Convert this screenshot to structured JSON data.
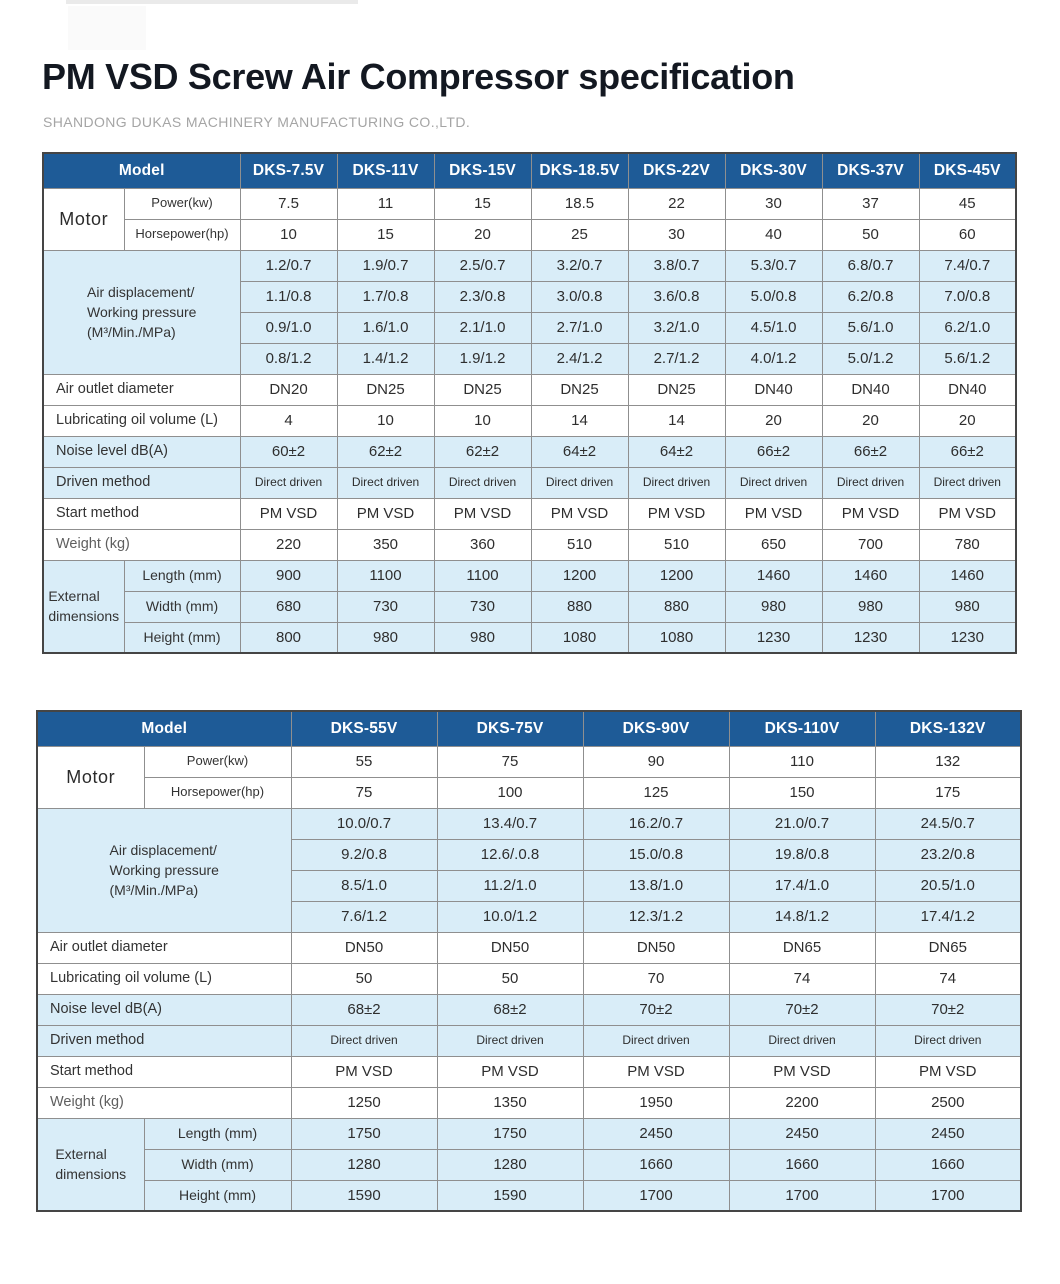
{
  "page": {
    "title": "PM VSD Screw Air Compressor specification",
    "subtitle": "SHANDONG DUKAS MACHINERY MANUFACTURING CO.,LTD."
  },
  "colors": {
    "header_bg": "#1e5b97",
    "row_highlight": "#d9edf8"
  },
  "labels": {
    "model": "Model",
    "motor": "Motor",
    "power": "Power(kw)",
    "horsepower": "Horsepower(hp)",
    "air_displacement": [
      "Air displacement/",
      "Working pressure",
      "(M³/Min./MPa)"
    ],
    "air_outlet": "Air outlet diameter",
    "lubricating": "Lubricating oil volume (L)",
    "noise": "Noise level dB(A)",
    "driven": "Driven method",
    "start": "Start method",
    "weight": "Weight (kg)",
    "external": [
      "External",
      "dimensions"
    ],
    "length": "Length (mm)",
    "width": "Width (mm)",
    "height": "Height (mm)"
  },
  "table1": {
    "models": [
      "DKS-7.5V",
      "DKS-11V",
      "DKS-15V",
      "DKS-18.5V",
      "DKS-22V",
      "DKS-30V",
      "DKS-37V",
      "DKS-45V"
    ],
    "power": [
      "7.5",
      "11",
      "15",
      "18.5",
      "22",
      "30",
      "37",
      "45"
    ],
    "horsepower": [
      "10",
      "15",
      "20",
      "25",
      "30",
      "40",
      "50",
      "60"
    ],
    "air_rows": [
      [
        "1.2/0.7",
        "1.9/0.7",
        "2.5/0.7",
        "3.2/0.7",
        "3.8/0.7",
        "5.3/0.7",
        "6.8/0.7",
        "7.4/0.7"
      ],
      [
        "1.1/0.8",
        "1.7/0.8",
        "2.3/0.8",
        "3.0/0.8",
        "3.6/0.8",
        "5.0/0.8",
        "6.2/0.8",
        "7.0/0.8"
      ],
      [
        "0.9/1.0",
        "1.6/1.0",
        "2.1/1.0",
        "2.7/1.0",
        "3.2/1.0",
        "4.5/1.0",
        "5.6/1.0",
        "6.2/1.0"
      ],
      [
        "0.8/1.2",
        "1.4/1.2",
        "1.9/1.2",
        "2.4/1.2",
        "2.7/1.2",
        "4.0/1.2",
        "5.0/1.2",
        "5.6/1.2"
      ]
    ],
    "air_outlet": [
      "DN20",
      "DN25",
      "DN25",
      "DN25",
      "DN25",
      "DN40",
      "DN40",
      "DN40"
    ],
    "lubricating": [
      "4",
      "10",
      "10",
      "14",
      "14",
      "20",
      "20",
      "20"
    ],
    "noise": [
      "60±2",
      "62±2",
      "62±2",
      "64±2",
      "64±2",
      "66±2",
      "66±2",
      "66±2"
    ],
    "driven": [
      "Direct driven",
      "Direct driven",
      "Direct driven",
      "Direct driven",
      "Direct driven",
      "Direct driven",
      "Direct driven",
      "Direct driven"
    ],
    "start": [
      "PM VSD",
      "PM VSD",
      "PM VSD",
      "PM VSD",
      "PM VSD",
      "PM VSD",
      "PM VSD",
      "PM VSD"
    ],
    "weight": [
      "220",
      "350",
      "360",
      "510",
      "510",
      "650",
      "700",
      "780"
    ],
    "length": [
      "900",
      "1100",
      "1100",
      "1200",
      "1200",
      "1460",
      "1460",
      "1460"
    ],
    "width": [
      "680",
      "730",
      "730",
      "880",
      "880",
      "980",
      "980",
      "980"
    ],
    "height": [
      "800",
      "980",
      "980",
      "1080",
      "1080",
      "1230",
      "1230",
      "1230"
    ]
  },
  "table2": {
    "models": [
      "DKS-55V",
      "DKS-75V",
      "DKS-90V",
      "DKS-110V",
      "DKS-132V"
    ],
    "power": [
      "55",
      "75",
      "90",
      "110",
      "132"
    ],
    "horsepower": [
      "75",
      "100",
      "125",
      "150",
      "175"
    ],
    "air_rows": [
      [
        "10.0/0.7",
        "13.4/0.7",
        "16.2/0.7",
        "21.0/0.7",
        "24.5/0.7"
      ],
      [
        "9.2/0.8",
        "12.6/.0.8",
        "15.0/0.8",
        "19.8/0.8",
        "23.2/0.8"
      ],
      [
        "8.5/1.0",
        "11.2/1.0",
        "13.8/1.0",
        "17.4/1.0",
        "20.5/1.0"
      ],
      [
        "7.6/1.2",
        "10.0/1.2",
        "12.3/1.2",
        "14.8/1.2",
        "17.4/1.2"
      ]
    ],
    "air_outlet": [
      "DN50",
      "DN50",
      "DN50",
      "DN65",
      "DN65"
    ],
    "lubricating": [
      "50",
      "50",
      "70",
      "74",
      "74"
    ],
    "noise": [
      "68±2",
      "68±2",
      "70±2",
      "70±2",
      "70±2"
    ],
    "driven": [
      "Direct driven",
      "Direct driven",
      "Direct driven",
      "Direct driven",
      "Direct driven"
    ],
    "start": [
      "PM VSD",
      "PM VSD",
      "PM VSD",
      "PM VSD",
      "PM VSD"
    ],
    "weight": [
      "1250",
      "1350",
      "1950",
      "2200",
      "2500"
    ],
    "length": [
      "1750",
      "1750",
      "2450",
      "2450",
      "2450"
    ],
    "width": [
      "1280",
      "1280",
      "1660",
      "1660",
      "1660"
    ],
    "height": [
      "1590",
      "1590",
      "1700",
      "1700",
      "1700"
    ]
  }
}
